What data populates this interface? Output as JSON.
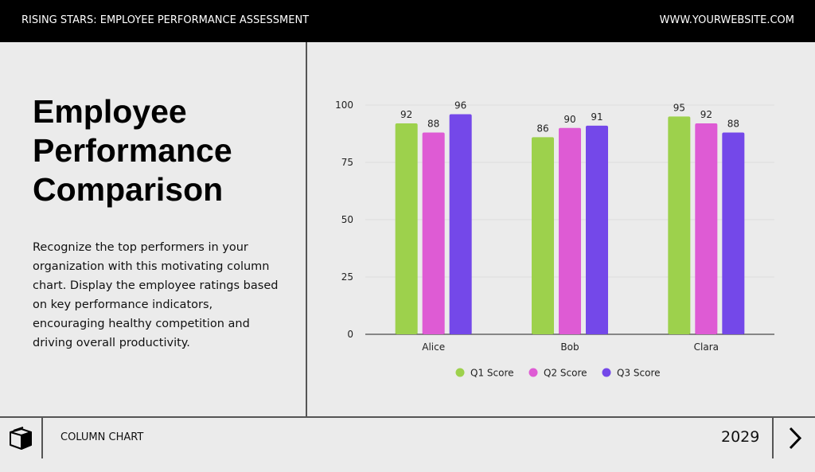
{
  "header": {
    "title": "RISING STARS: EMPLOYEE PERFORMANCE ASSESSMENT",
    "website": "WWW.YOURWEBSITE.COM"
  },
  "left": {
    "title_lines": [
      "Employee",
      "Performance",
      "Comparison"
    ],
    "description": "Recognize the top performers in your organization with this motivating column chart. Display the employee ratings based on key performance indicators, encouraging healthy competition and driving overall productivity."
  },
  "footer": {
    "icon": "package-box-icon",
    "label": "COLUMN CHART",
    "year": "2029",
    "next_icon": "chevron-right-icon"
  },
  "chart_data": {
    "type": "bar",
    "categories": [
      "Alice",
      "Bob",
      "Clara"
    ],
    "series": [
      {
        "name": "Q1 Score",
        "values": [
          92,
          86,
          95
        ],
        "color": "#9dd14c"
      },
      {
        "name": "Q2 Score",
        "values": [
          88,
          90,
          92
        ],
        "color": "#de5bd4"
      },
      {
        "name": "Q3 Score",
        "values": [
          96,
          91,
          88
        ],
        "color": "#7448e9"
      }
    ],
    "ylim": [
      0,
      100
    ],
    "yticks": [
      0,
      25,
      50,
      75,
      100
    ],
    "grid": true,
    "legend": "bottom",
    "data_labels": true
  }
}
